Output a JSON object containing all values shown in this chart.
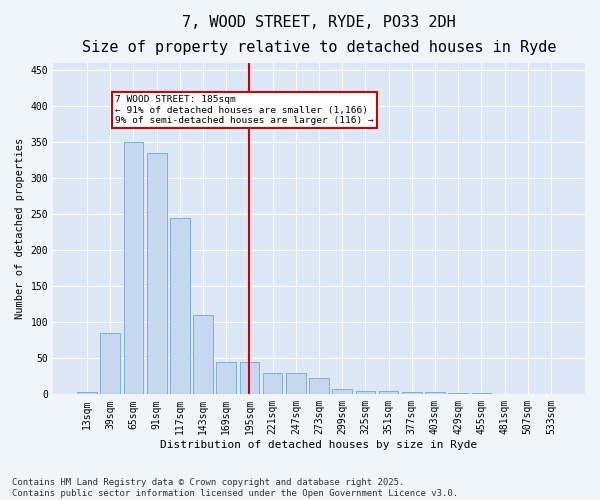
{
  "title": "7, WOOD STREET, RYDE, PO33 2DH",
  "subtitle": "Size of property relative to detached houses in Ryde",
  "xlabel": "Distribution of detached houses by size in Ryde",
  "ylabel": "Number of detached properties",
  "categories": [
    "13sqm",
    "39sqm",
    "65sqm",
    "91sqm",
    "117sqm",
    "143sqm",
    "169sqm",
    "195sqm",
    "221sqm",
    "247sqm",
    "273sqm",
    "299sqm",
    "325sqm",
    "351sqm",
    "377sqm",
    "403sqm",
    "429sqm",
    "455sqm",
    "481sqm",
    "507sqm",
    "533sqm"
  ],
  "values": [
    3,
    85,
    350,
    335,
    245,
    110,
    45,
    45,
    30,
    30,
    22,
    7,
    5,
    5,
    3,
    3,
    2,
    2,
    1,
    1,
    1
  ],
  "bar_color": "#c5d8f0",
  "bar_edge_color": "#7bafd4",
  "vline_color": "#cc0000",
  "annotation_text": "7 WOOD STREET: 185sqm\n← 91% of detached houses are smaller (1,166)\n9% of semi-detached houses are larger (116) →",
  "annotation_box_color": "#ffffff",
  "annotation_box_edge_color": "#cc0000",
  "ylim": [
    0,
    460
  ],
  "yticks": [
    0,
    50,
    100,
    150,
    200,
    250,
    300,
    350,
    400,
    450
  ],
  "plot_bg_color": "#dce8f5",
  "fig_bg_color": "#f0f5fb",
  "grid_color": "#ffffff",
  "title_fontsize": 11,
  "subtitle_fontsize": 9.5,
  "axis_fontsize": 7.5,
  "tick_fontsize": 7,
  "footer_text": "Contains HM Land Registry data © Crown copyright and database right 2025.\nContains public sector information licensed under the Open Government Licence v3.0.",
  "footer_fontsize": 6.5
}
